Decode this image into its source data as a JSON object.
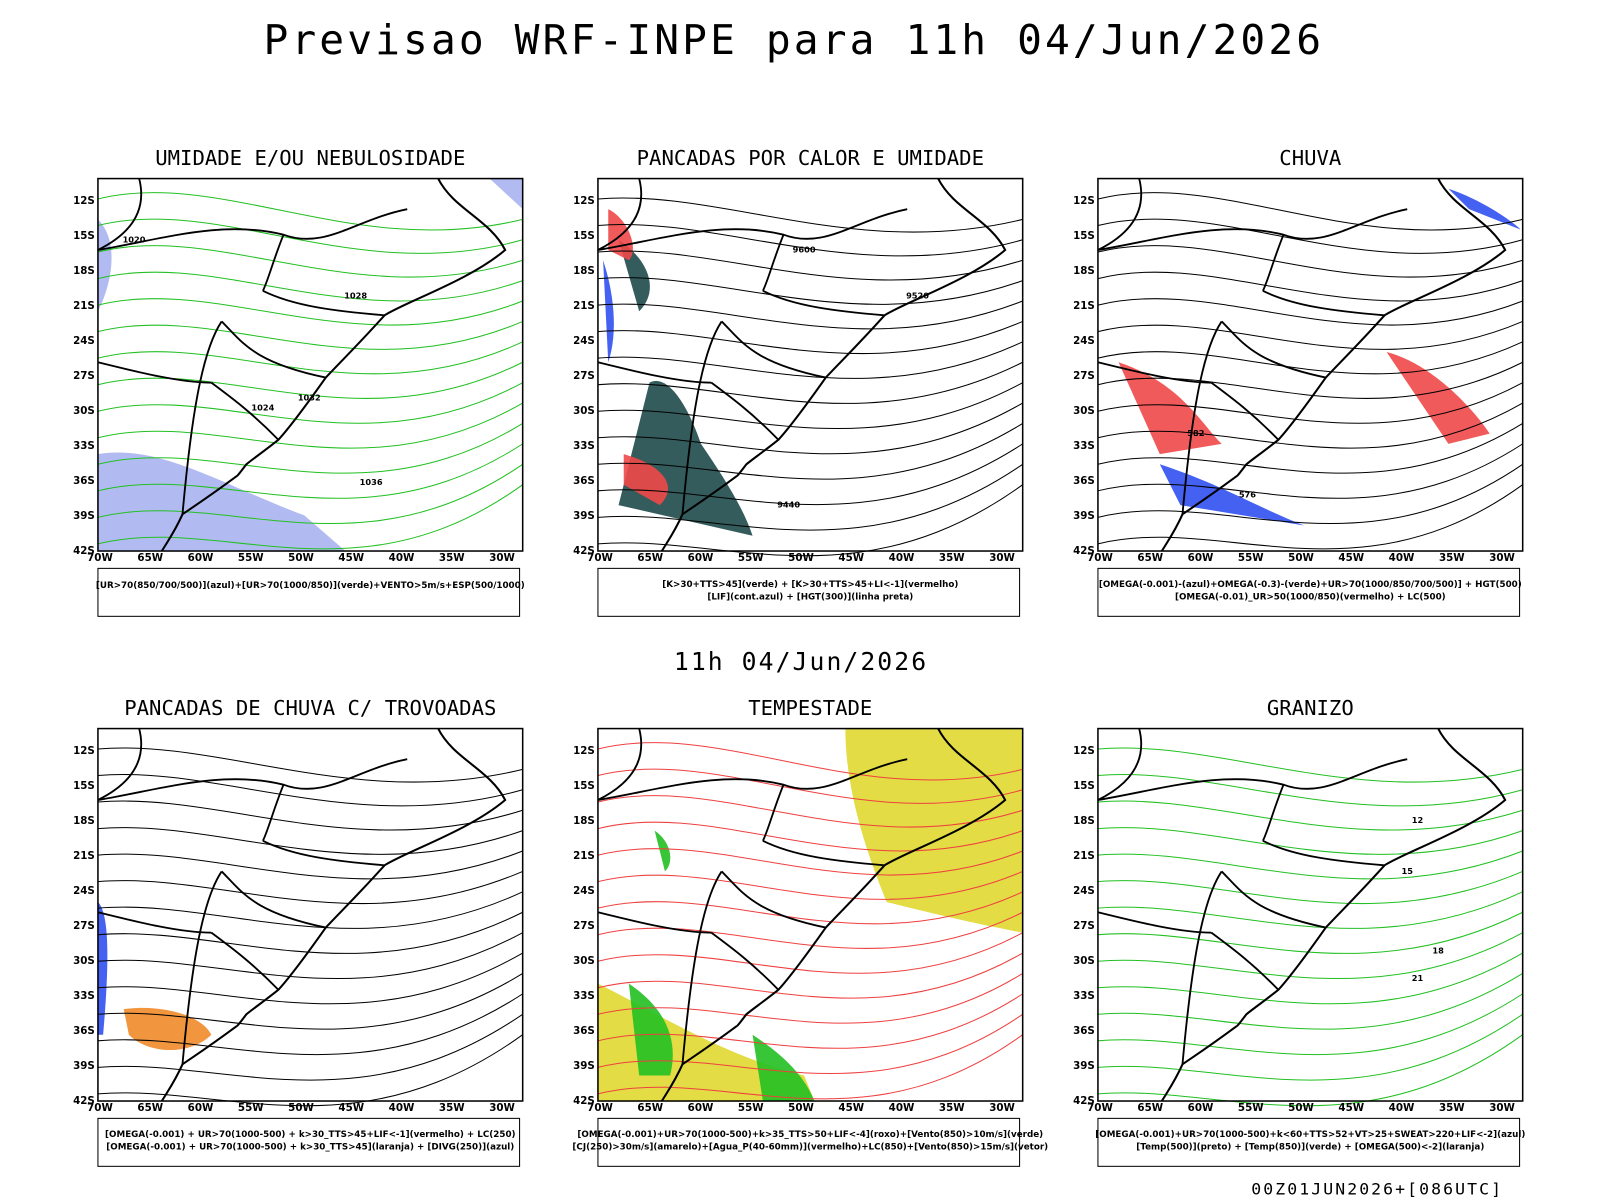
{
  "header": {
    "title": "Previsao WRF-INPE  para 11h 04/Jun/2026",
    "subtitle": "11h 04/Jun/2026",
    "footer": "00Z01JUN2026+[086UTC]"
  },
  "lat_labels": [
    "12S",
    "15S",
    "18S",
    "21S",
    "24S",
    "27S",
    "30S",
    "33S",
    "36S",
    "39S",
    "42S"
  ],
  "lon_labels": [
    "70W",
    "65W",
    "60W",
    "55W",
    "50W",
    "45W",
    "40W",
    "35W",
    "30W"
  ],
  "panels": [
    {
      "title": "UMIDADE E/OU NEBULOSIDADE",
      "legend": [
        "[UR>70(850/700/500)](azul)+[UR>70(1000/850)](verde)+VENTO>5m/s+ESP(500/1000)"
      ],
      "contour_labels": [
        "1020",
        "1024",
        "1028",
        "1032",
        "1036"
      ]
    },
    {
      "title": "PANCADAS POR CALOR E UMIDADE",
      "legend": [
        "[K>30+TTS>45](verde) + [K>30+TTS>45+LI<-1](vermelho)",
        "[LIF](cont.azul) + [HGT(300)](linha preta)"
      ],
      "contour_labels": [
        "9600",
        "9520",
        "9440"
      ]
    },
    {
      "title": "CHUVA",
      "legend": [
        "[OMEGA(-0.001)-(azul)+OMEGA(-0.3)-(verde)+UR>70(1000/850/700/500)] + HGT(500)",
        "[OMEGA(-0.01)_UR>50(1000/850)(vermelho) + LC(500)"
      ],
      "contour_labels": [
        "582",
        "576"
      ]
    },
    {
      "title": "PANCADAS DE CHUVA C/ TROVOADAS",
      "legend": [
        "[OMEGA(-0.001) + UR>70(1000-500) + k>30_TTS>45+LIF<-1](vermelho) + LC(250)",
        "[OMEGA(-0.001) + UR>70(1000-500) + k>30_TTS>45](laranja) + [DIVG(250)](azul)"
      ],
      "contour_labels": []
    },
    {
      "title": "TEMPESTADE",
      "legend": [
        "[OMEGA(-0.001)+UR>70(1000-500)+k>35_TTS>50+LIF<-4](roxo)+[Vento(850)>10m/s](verde)",
        "[CJ(250)>30m/s](amarelo)+[Agua_P(40-60mm)](vermelho)+LC(850)+[Vento(850)>15m/s](vetor)"
      ],
      "contour_labels": []
    },
    {
      "title": "GRANIZO",
      "legend": [
        "[OMEGA(-0.001)+UR>70(1000-500)+k<60+TTS>52+VT>25+SWEAT>220+LIF<-2](azul)",
        "[Temp(500)](preto) + [Temp(850)](verde) + [OMEGA(500)<-2](laranja)"
      ],
      "contour_labels": [
        "12",
        "15",
        "18",
        "21"
      ]
    }
  ]
}
